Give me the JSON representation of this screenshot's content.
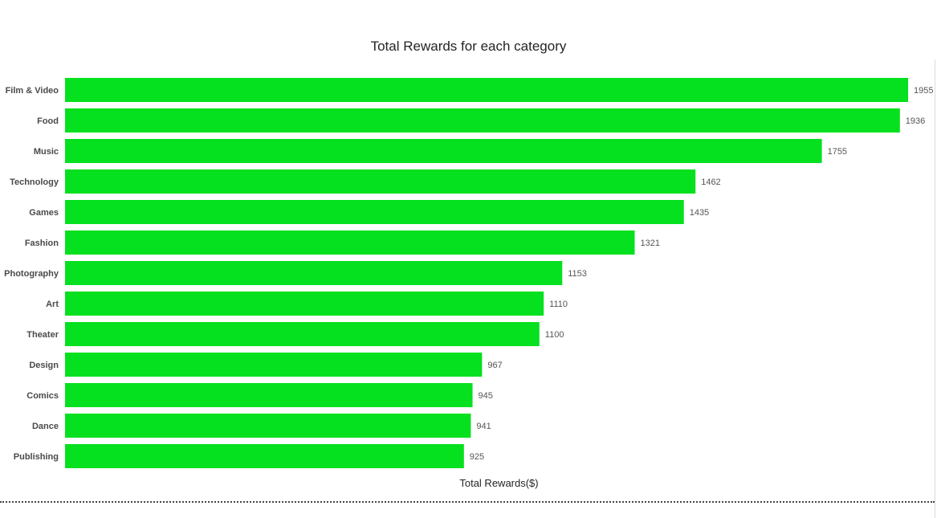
{
  "chart_data": {
    "type": "bar",
    "orientation": "horizontal",
    "title": "Total Rewards for each category",
    "xlabel": "Total Rewards($)",
    "ylabel": "",
    "categories": [
      "Film & Video",
      "Food",
      "Music",
      "Technology",
      "Games",
      "Fashion",
      "Photography",
      "Art",
      "Theater",
      "Design",
      "Comics",
      "Dance",
      "Publishing"
    ],
    "values": [
      1955,
      1936,
      1755,
      1462,
      1435,
      1321,
      1153,
      1110,
      1100,
      967,
      945,
      941,
      925
    ],
    "data_labels": [
      "1955",
      "1936",
      "1755",
      "1462",
      "1435",
      "1321",
      "1153",
      "1110",
      "1100",
      "967",
      "945",
      "941",
      "925"
    ],
    "xlim": [
      0,
      1955
    ],
    "grid": false,
    "legend": "none",
    "bar_color": "#05E01F"
  }
}
